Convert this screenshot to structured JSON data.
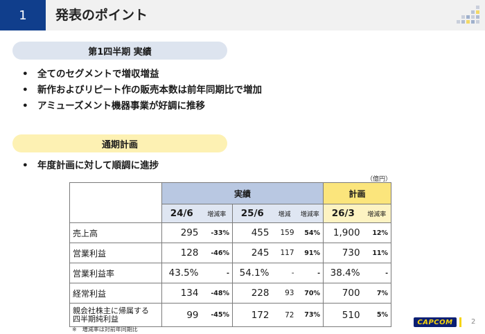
{
  "header": {
    "slide_number": "1",
    "title": "発表のポイント"
  },
  "section_q1": {
    "label": "第1四半期 実績",
    "bullets": [
      "全てのセグメントで増収増益",
      "新作およびリピート作の販売本数は前年同期比で増加",
      "アミューズメント機器事業が好調に推移"
    ]
  },
  "section_full": {
    "label": "通期計画",
    "bullets": [
      "年度計画に対して順調に進捗"
    ]
  },
  "table": {
    "unit": "（億円）",
    "header_actual": "実績",
    "header_plan": "計画",
    "periods": {
      "p1": "24/6",
      "p2": "25/6",
      "p3": "26/3"
    },
    "col_labels": {
      "change_rate": "増減率",
      "change": "増減"
    },
    "rows": [
      {
        "label": "売上高",
        "v1": "295",
        "r1": "-33%",
        "v2": "455",
        "d2": "159",
        "r2": "54%",
        "v3": "1,900",
        "r3": "12%"
      },
      {
        "label": "営業利益",
        "v1": "128",
        "r1": "-46%",
        "v2": "245",
        "d2": "117",
        "r2": "91%",
        "v3": "730",
        "r3": "11%"
      },
      {
        "label": "営業利益率",
        "v1": "43.5%",
        "r1": "-",
        "v2": "54.1%",
        "d2": "-",
        "r2": "-",
        "v3": "38.4%",
        "r3": "-"
      },
      {
        "label": "経常利益",
        "v1": "134",
        "r1": "-48%",
        "v2": "228",
        "d2": "93",
        "r2": "70%",
        "v3": "700",
        "r3": "7%"
      },
      {
        "label_line1": "親会社株主に帰属する",
        "label_line2": "四半期純利益",
        "v1": "99",
        "r1": "-45%",
        "v2": "172",
        "d2": "72",
        "r2": "73%",
        "v3": "510",
        "r3": "5%"
      }
    ]
  },
  "footnote": "※　増減率は対前年同期比",
  "logo_text": "CAPCOM",
  "page_number": "2",
  "colors": {
    "navy": "#103e8c",
    "actual_header": "#b9c8e2",
    "plan_header": "#fbe57c"
  }
}
